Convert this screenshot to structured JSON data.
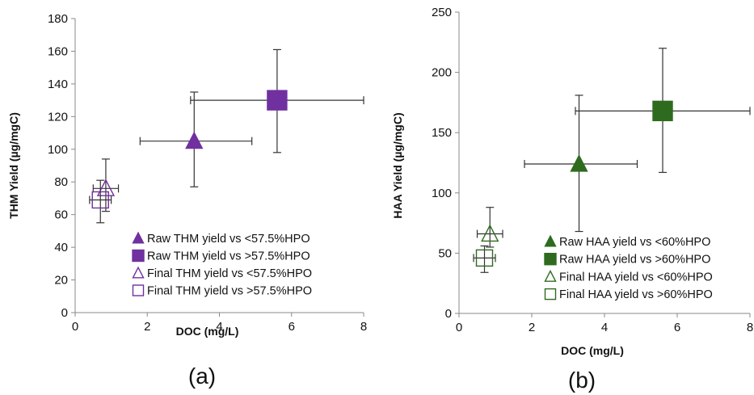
{
  "chart_data": [
    {
      "type": "scatter",
      "panel_label": "(a)",
      "xlabel": "DOC (mg/L)",
      "ylabel": "THM Yield (µg/mgC)",
      "xlim": [
        0,
        8
      ],
      "ylim": [
        0,
        180
      ],
      "xticks": [
        "0",
        "2",
        "4",
        "6",
        "8"
      ],
      "yticks": [
        "0",
        "20",
        "40",
        "60",
        "80",
        "100",
        "120",
        "140",
        "160",
        "180"
      ],
      "grid": false,
      "legend_position": "bottom-right",
      "color": "#7030a0",
      "series": [
        {
          "name": "Raw THM yield vs <57.5%HPO",
          "marker": "triangle",
          "filled": true,
          "size": "medium",
          "x": 3.3,
          "y": 105,
          "xerr": [
            1.8,
            4.9
          ],
          "yerr": [
            77,
            135
          ]
        },
        {
          "name": "Raw THM yield vs >57.5%HPO",
          "marker": "square",
          "filled": true,
          "size": "large",
          "x": 5.6,
          "y": 130,
          "xerr": [
            3.2,
            8.0
          ],
          "yerr": [
            98,
            161
          ]
        },
        {
          "name": "Final THM yield vs <57.5%HPO",
          "marker": "triangle",
          "filled": false,
          "size": "medium",
          "x": 0.85,
          "y": 76,
          "xerr": [
            0.5,
            1.2
          ],
          "yerr": [
            62,
            94
          ]
        },
        {
          "name": "Final THM yield vs >57.5%HPO",
          "marker": "square",
          "filled": false,
          "size": "medium",
          "x": 0.7,
          "y": 69,
          "xerr": [
            0.4,
            1.0
          ],
          "yerr": [
            55,
            81
          ]
        }
      ]
    },
    {
      "type": "scatter",
      "panel_label": "(b)",
      "xlabel": "DOC (mg/L)",
      "ylabel": "HAA Yield (µg/mgC)",
      "xlim": [
        0,
        8
      ],
      "ylim": [
        0,
        250
      ],
      "xticks": [
        "0",
        "2",
        "4",
        "6",
        "8"
      ],
      "yticks": [
        "0",
        "50",
        "100",
        "150",
        "200",
        "250"
      ],
      "grid": false,
      "legend_position": "bottom-right",
      "color": "#2e6b1e",
      "series": [
        {
          "name": "Raw HAA yield vs <60%HPO",
          "marker": "triangle",
          "filled": true,
          "size": "medium",
          "x": 3.3,
          "y": 124,
          "xerr": [
            1.8,
            4.9
          ],
          "yerr": [
            68,
            181
          ]
        },
        {
          "name": "Raw HAA yield vs >60%HPO",
          "marker": "square",
          "filled": true,
          "size": "large",
          "x": 5.6,
          "y": 168,
          "xerr": [
            3.2,
            8.0
          ],
          "yerr": [
            117,
            220
          ]
        },
        {
          "name": "Final HAA yield vs <60%HPO",
          "marker": "triangle",
          "filled": false,
          "size": "medium",
          "x": 0.85,
          "y": 66,
          "xerr": [
            0.5,
            1.2
          ],
          "yerr": [
            55,
            88
          ]
        },
        {
          "name": "Final HAA yield vs >60%HPO",
          "marker": "square",
          "filled": false,
          "size": "medium",
          "x": 0.7,
          "y": 46,
          "xerr": [
            0.4,
            1.0
          ],
          "yerr": [
            34,
            56
          ]
        }
      ]
    }
  ]
}
